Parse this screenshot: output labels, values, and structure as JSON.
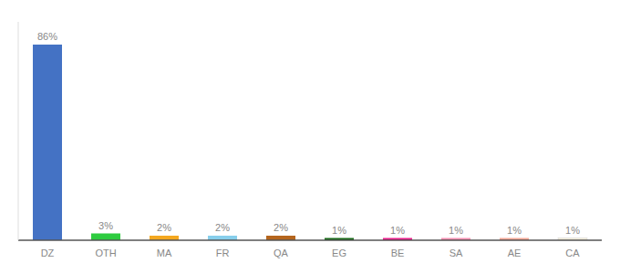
{
  "chart_data": {
    "type": "bar",
    "categories": [
      "DZ",
      "OTH",
      "MA",
      "FR",
      "QA",
      "EG",
      "BE",
      "SA",
      "AE",
      "CA"
    ],
    "values": [
      86,
      3,
      2,
      2,
      2,
      1,
      1,
      1,
      1,
      1
    ],
    "value_labels": [
      "86%",
      "3%",
      "2%",
      "2%",
      "2%",
      "1%",
      "1%",
      "1%",
      "1%",
      "1%"
    ],
    "colors": [
      "#4472C4",
      "#2ECC40",
      "#F4A820",
      "#87CEEB",
      "#B5651D",
      "#1A6B1A",
      "#E91E8C",
      "#F48FB1",
      "#F4A896",
      "#F5F0DC"
    ],
    "ylim": [
      0,
      96
    ],
    "data_labels": true,
    "tick_labels": "x",
    "grid": false
  }
}
